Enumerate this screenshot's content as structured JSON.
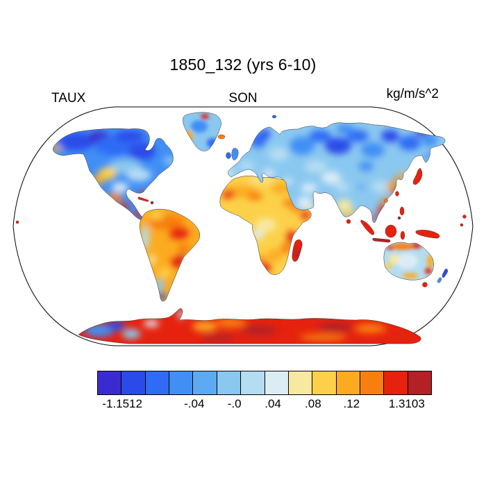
{
  "header": {
    "title": "1850_132 (yrs 6-10)"
  },
  "labels": {
    "variable": "TAUX",
    "season": "SON",
    "units": "kg/m/s^2"
  },
  "colorbar": {
    "outline_color": "#000000",
    "colors": [
      "#3a2bd0",
      "#2a4bea",
      "#2f6cf5",
      "#418ff5",
      "#5cabf2",
      "#8ac8f0",
      "#b5ddf2",
      "#dcecf5",
      "#f8e9a2",
      "#fcd149",
      "#fcab20",
      "#f87e10",
      "#e6220e",
      "#b32127"
    ],
    "ticks": [
      {
        "label": "-1.1512",
        "pos": 0.075
      },
      {
        "label": "-.04",
        "pos": 0.29
      },
      {
        "label": "-.0",
        "pos": 0.41
      },
      {
        "label": ".04",
        "pos": 0.525
      },
      {
        "label": ".08",
        "pos": 0.645
      },
      {
        "label": ".12",
        "pos": 0.76
      },
      {
        "label": "1.3103",
        "pos": 0.925
      }
    ]
  },
  "map": {
    "projection": "robinson",
    "outline_color": "#000000",
    "coastline_color": "#2a2a2a",
    "ocean_color": "#ffffff"
  },
  "chart_data": {
    "type": "heatmap",
    "title": "1850_132 (yrs 6-10)",
    "variable": "TAUX",
    "season": "SON",
    "units": "kg/m/s^2",
    "projection": "robinson",
    "data_min": -1.1512,
    "data_max": 1.3103,
    "contour_levels": [
      -0.08,
      -0.06,
      -0.04,
      -0.02,
      0,
      0.02,
      0.04,
      0.06,
      0.08,
      0.1,
      0.12
    ],
    "colorbar_colors": [
      "#3a2bd0",
      "#2a4bea",
      "#2f6cf5",
      "#418ff5",
      "#5cabf2",
      "#8ac8f0",
      "#b5ddf2",
      "#dcecf5",
      "#f8e9a2",
      "#fcd149",
      "#fcab20",
      "#f87e10",
      "#e6220e",
      "#b32127"
    ],
    "colorbar_tick_labels": [
      "-1.1512",
      "-.04",
      "-.0",
      ".04",
      ".08",
      ".12",
      "1.3103"
    ],
    "legend_position": "bottom",
    "notes": "Colored field over land and Antarctica, ocean masked white; blues negative, yellows-reds positive"
  }
}
